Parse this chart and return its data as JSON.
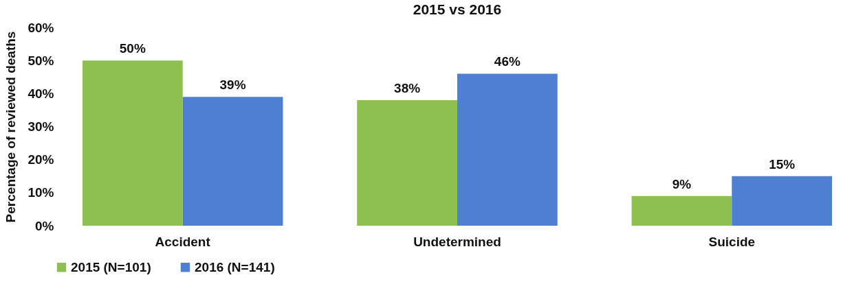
{
  "chart_data": {
    "type": "bar",
    "title": "2015 vs 2016",
    "ylabel": "Percentage of reviewed deaths",
    "categories": [
      "Accident",
      "Undetermined",
      "Suicide"
    ],
    "series": [
      {
        "name": "2015 (N=101)",
        "color": "#8dc04f",
        "values": [
          50,
          38,
          9
        ],
        "value_labels": [
          "50%",
          "38%",
          "9%"
        ]
      },
      {
        "name": "2016 (N=141)",
        "color": "#4f7fd0",
        "values": [
          39,
          46,
          15
        ],
        "value_labels": [
          "39%",
          "46%",
          "15%"
        ]
      }
    ],
    "ylim": [
      0,
      60
    ],
    "yticks": [
      {
        "value": 0,
        "label": "0%"
      },
      {
        "value": 10,
        "label": "10%"
      },
      {
        "value": 20,
        "label": "20%"
      },
      {
        "value": 30,
        "label": "30%"
      },
      {
        "value": 40,
        "label": "40%"
      },
      {
        "value": 50,
        "label": "50%"
      },
      {
        "value": 60,
        "label": "60%"
      }
    ],
    "legend": "bottom"
  }
}
